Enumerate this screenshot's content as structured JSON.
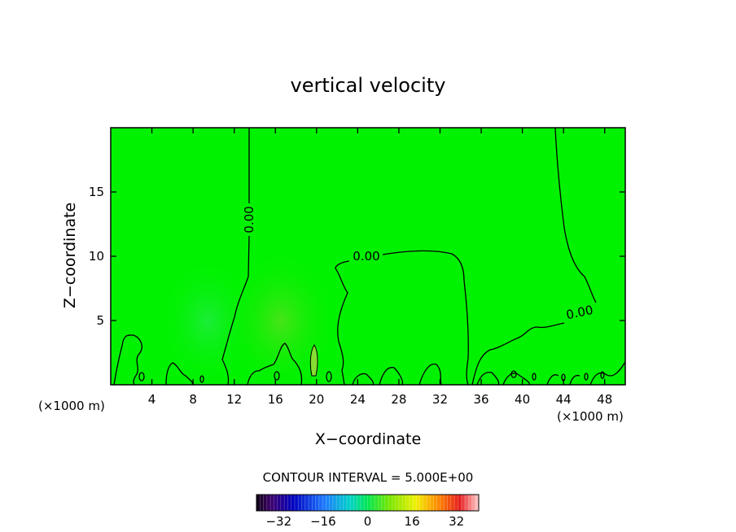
{
  "chart_data": {
    "type": "contour",
    "title": "vertical velocity",
    "xlabel": "X−coordinate",
    "ylabel": "Z−coordinate",
    "x_unit_left": "(×1000 m)",
    "x_unit_right": "(×1000 m)",
    "xlim": [
      0,
      50
    ],
    "ylim": [
      0,
      20
    ],
    "xticks": [
      4,
      8,
      12,
      16,
      20,
      24,
      28,
      32,
      36,
      40,
      44,
      48
    ],
    "yticks": [
      5,
      10,
      15
    ],
    "contour_labels": [
      "0.00",
      "0.00",
      "0.00"
    ],
    "contour_interval_text": "CONTOUR INTERVAL = 5.000E+00",
    "colorbar": {
      "ticks": [
        "−32",
        "−16",
        "0",
        "16",
        "32"
      ],
      "range": [
        -40,
        40
      ]
    },
    "field_color": "#00f200"
  }
}
